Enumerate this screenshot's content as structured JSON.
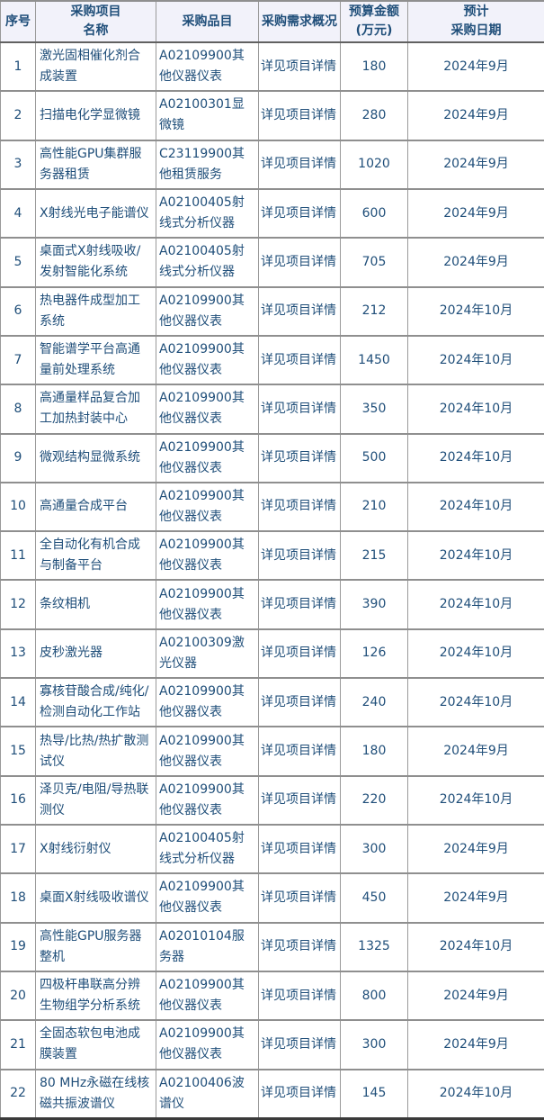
{
  "table": {
    "columns": [
      {
        "label": "序号"
      },
      {
        "label": "采购项目\n名称"
      },
      {
        "label": "采购品目"
      },
      {
        "label": "采购需求概况"
      },
      {
        "label": "预算金额\n(万元)"
      },
      {
        "label": "预计\n采购日期"
      }
    ],
    "rows": [
      {
        "no": "1",
        "name": "激光固相催化剂合成装置",
        "item": "A02109900其他仪器仪表",
        "demand": "详见项目详情",
        "budget": "180",
        "date": "2024年9月"
      },
      {
        "no": "2",
        "name": "扫描电化学显微镜",
        "item": "A02100301显微镜",
        "demand": "详见项目详情",
        "budget": "280",
        "date": "2024年9月"
      },
      {
        "no": "3",
        "name": "高性能GPU集群服务器租赁",
        "item": "C23119900其他租赁服务",
        "demand": "详见项目详情",
        "budget": "1020",
        "date": "2024年9月"
      },
      {
        "no": "4",
        "name": "X射线光电子能谱仪",
        "item": "A02100405射线式分析仪器",
        "demand": "详见项目详情",
        "budget": "600",
        "date": "2024年9月"
      },
      {
        "no": "5",
        "name": "桌面式X射线吸收/发射智能化系统",
        "item": "A02100405射线式分析仪器",
        "demand": "详见项目详情",
        "budget": "705",
        "date": "2024年9月"
      },
      {
        "no": "6",
        "name": "热电器件成型加工系统",
        "item": "A02109900其他仪器仪表",
        "demand": "详见项目详情",
        "budget": "212",
        "date": "2024年10月"
      },
      {
        "no": "7",
        "name": "智能谱学平台高通量前处理系统",
        "item": "A02109900其他仪器仪表",
        "demand": "详见项目详情",
        "budget": "1450",
        "date": "2024年10月"
      },
      {
        "no": "8",
        "name": "高通量样品复合加工加热封装中心",
        "item": "A02109900其他仪器仪表",
        "demand": "详见项目详情",
        "budget": "350",
        "date": "2024年10月"
      },
      {
        "no": "9",
        "name": "微观结构显微系统",
        "item": "A02109900其他仪器仪表",
        "demand": "详见项目详情",
        "budget": "500",
        "date": "2024年10月"
      },
      {
        "no": "10",
        "name": "高通量合成平台",
        "item": "A02109900其他仪器仪表",
        "demand": "详见项目详情",
        "budget": "210",
        "date": "2024年10月"
      },
      {
        "no": "11",
        "name": "全自动化有机合成与制备平台",
        "item": "A02109900其他仪器仪表",
        "demand": "详见项目详情",
        "budget": "215",
        "date": "2024年10月"
      },
      {
        "no": "12",
        "name": "条纹相机",
        "item": "A02109900其他仪器仪表",
        "demand": "详见项目详情",
        "budget": "390",
        "date": "2024年10月"
      },
      {
        "no": "13",
        "name": "皮秒激光器",
        "item": "A02100309激光仪器",
        "demand": "详见项目详情",
        "budget": "126",
        "date": "2024年10月"
      },
      {
        "no": "14",
        "name": "寡核苷酸合成/纯化/检测自动化工作站",
        "item": "A02109900其他仪器仪表",
        "demand": "详见项目详情",
        "budget": "240",
        "date": "2024年10月"
      },
      {
        "no": "15",
        "name": "热导/比热/热扩散测试仪",
        "item": "A02109900其他仪器仪表",
        "demand": "详见项目详情",
        "budget": "180",
        "date": "2024年9月"
      },
      {
        "no": "16",
        "name": "泽贝克/电阻/导热联测仪",
        "item": "A02109900其他仪器仪表",
        "demand": "详见项目详情",
        "budget": "220",
        "date": "2024年10月"
      },
      {
        "no": "17",
        "name": "X射线衍射仪",
        "item": "A02100405射线式分析仪器",
        "demand": "详见项目详情",
        "budget": "300",
        "date": "2024年9月"
      },
      {
        "no": "18",
        "name": "桌面X射线吸收谱仪",
        "item": "A02109900其他仪器仪表",
        "demand": "详见项目详情",
        "budget": "450",
        "date": "2024年9月"
      },
      {
        "no": "19",
        "name": "高性能GPU服务器整机",
        "item": "A02010104服务器",
        "demand": "详见项目详情",
        "budget": "1325",
        "date": "2024年10月"
      },
      {
        "no": "20",
        "name": "四极杆串联高分辨生物组学分析系统",
        "item": "A02109900其他仪器仪表",
        "demand": "详见项目详情",
        "budget": "800",
        "date": "2024年9月"
      },
      {
        "no": "21",
        "name": "全固态软包电池成膜装置",
        "item": "A02109900其他仪器仪表",
        "demand": "详见项目详情",
        "budget": "300",
        "date": "2024年9月"
      },
      {
        "no": "22",
        "name": "80 MHz永磁在线核磁共振波谱仪",
        "item": "A02100406波谱仪",
        "demand": "详见项目详情",
        "budget": "145",
        "date": "2024年10月"
      }
    ]
  },
  "colors": {
    "header_background": "#F2F2FA",
    "text": "#1F4E79",
    "inner_border": "#8F8F8F",
    "outer_border": "#3A3A3A"
  }
}
